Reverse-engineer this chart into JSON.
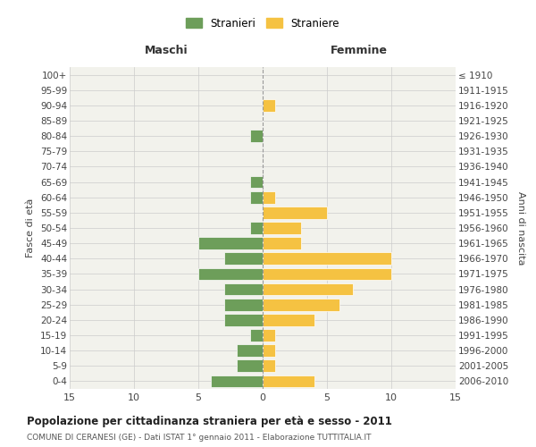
{
  "age_groups": [
    "0-4",
    "5-9",
    "10-14",
    "15-19",
    "20-24",
    "25-29",
    "30-34",
    "35-39",
    "40-44",
    "45-49",
    "50-54",
    "55-59",
    "60-64",
    "65-69",
    "70-74",
    "75-79",
    "80-84",
    "85-89",
    "90-94",
    "95-99",
    "100+"
  ],
  "birth_years": [
    "2006-2010",
    "2001-2005",
    "1996-2000",
    "1991-1995",
    "1986-1990",
    "1981-1985",
    "1976-1980",
    "1971-1975",
    "1966-1970",
    "1961-1965",
    "1956-1960",
    "1951-1955",
    "1946-1950",
    "1941-1945",
    "1936-1940",
    "1931-1935",
    "1926-1930",
    "1921-1925",
    "1916-1920",
    "1911-1915",
    "≤ 1910"
  ],
  "males": [
    4,
    2,
    2,
    1,
    3,
    3,
    3,
    5,
    3,
    5,
    1,
    0,
    1,
    1,
    0,
    0,
    1,
    0,
    0,
    0,
    0
  ],
  "females": [
    4,
    1,
    1,
    1,
    4,
    6,
    7,
    10,
    10,
    3,
    3,
    5,
    1,
    0,
    0,
    0,
    0,
    0,
    1,
    0,
    0
  ],
  "male_color": "#6d9e5a",
  "female_color": "#f5c242",
  "title": "Popolazione per cittadinanza straniera per età e sesso - 2011",
  "subtitle": "COMUNE DI CERANESI (GE) - Dati ISTAT 1° gennaio 2011 - Elaborazione TUTTITALIA.IT",
  "xlabel_left": "Maschi",
  "xlabel_right": "Femmine",
  "ylabel_left": "Fasce di età",
  "ylabel_right": "Anni di nascita",
  "xlim": 15,
  "legend_stranieri": "Stranieri",
  "legend_straniere": "Straniere",
  "background_color": "#ffffff",
  "plot_bg_color": "#f2f2ec",
  "grid_color": "#cccccc"
}
